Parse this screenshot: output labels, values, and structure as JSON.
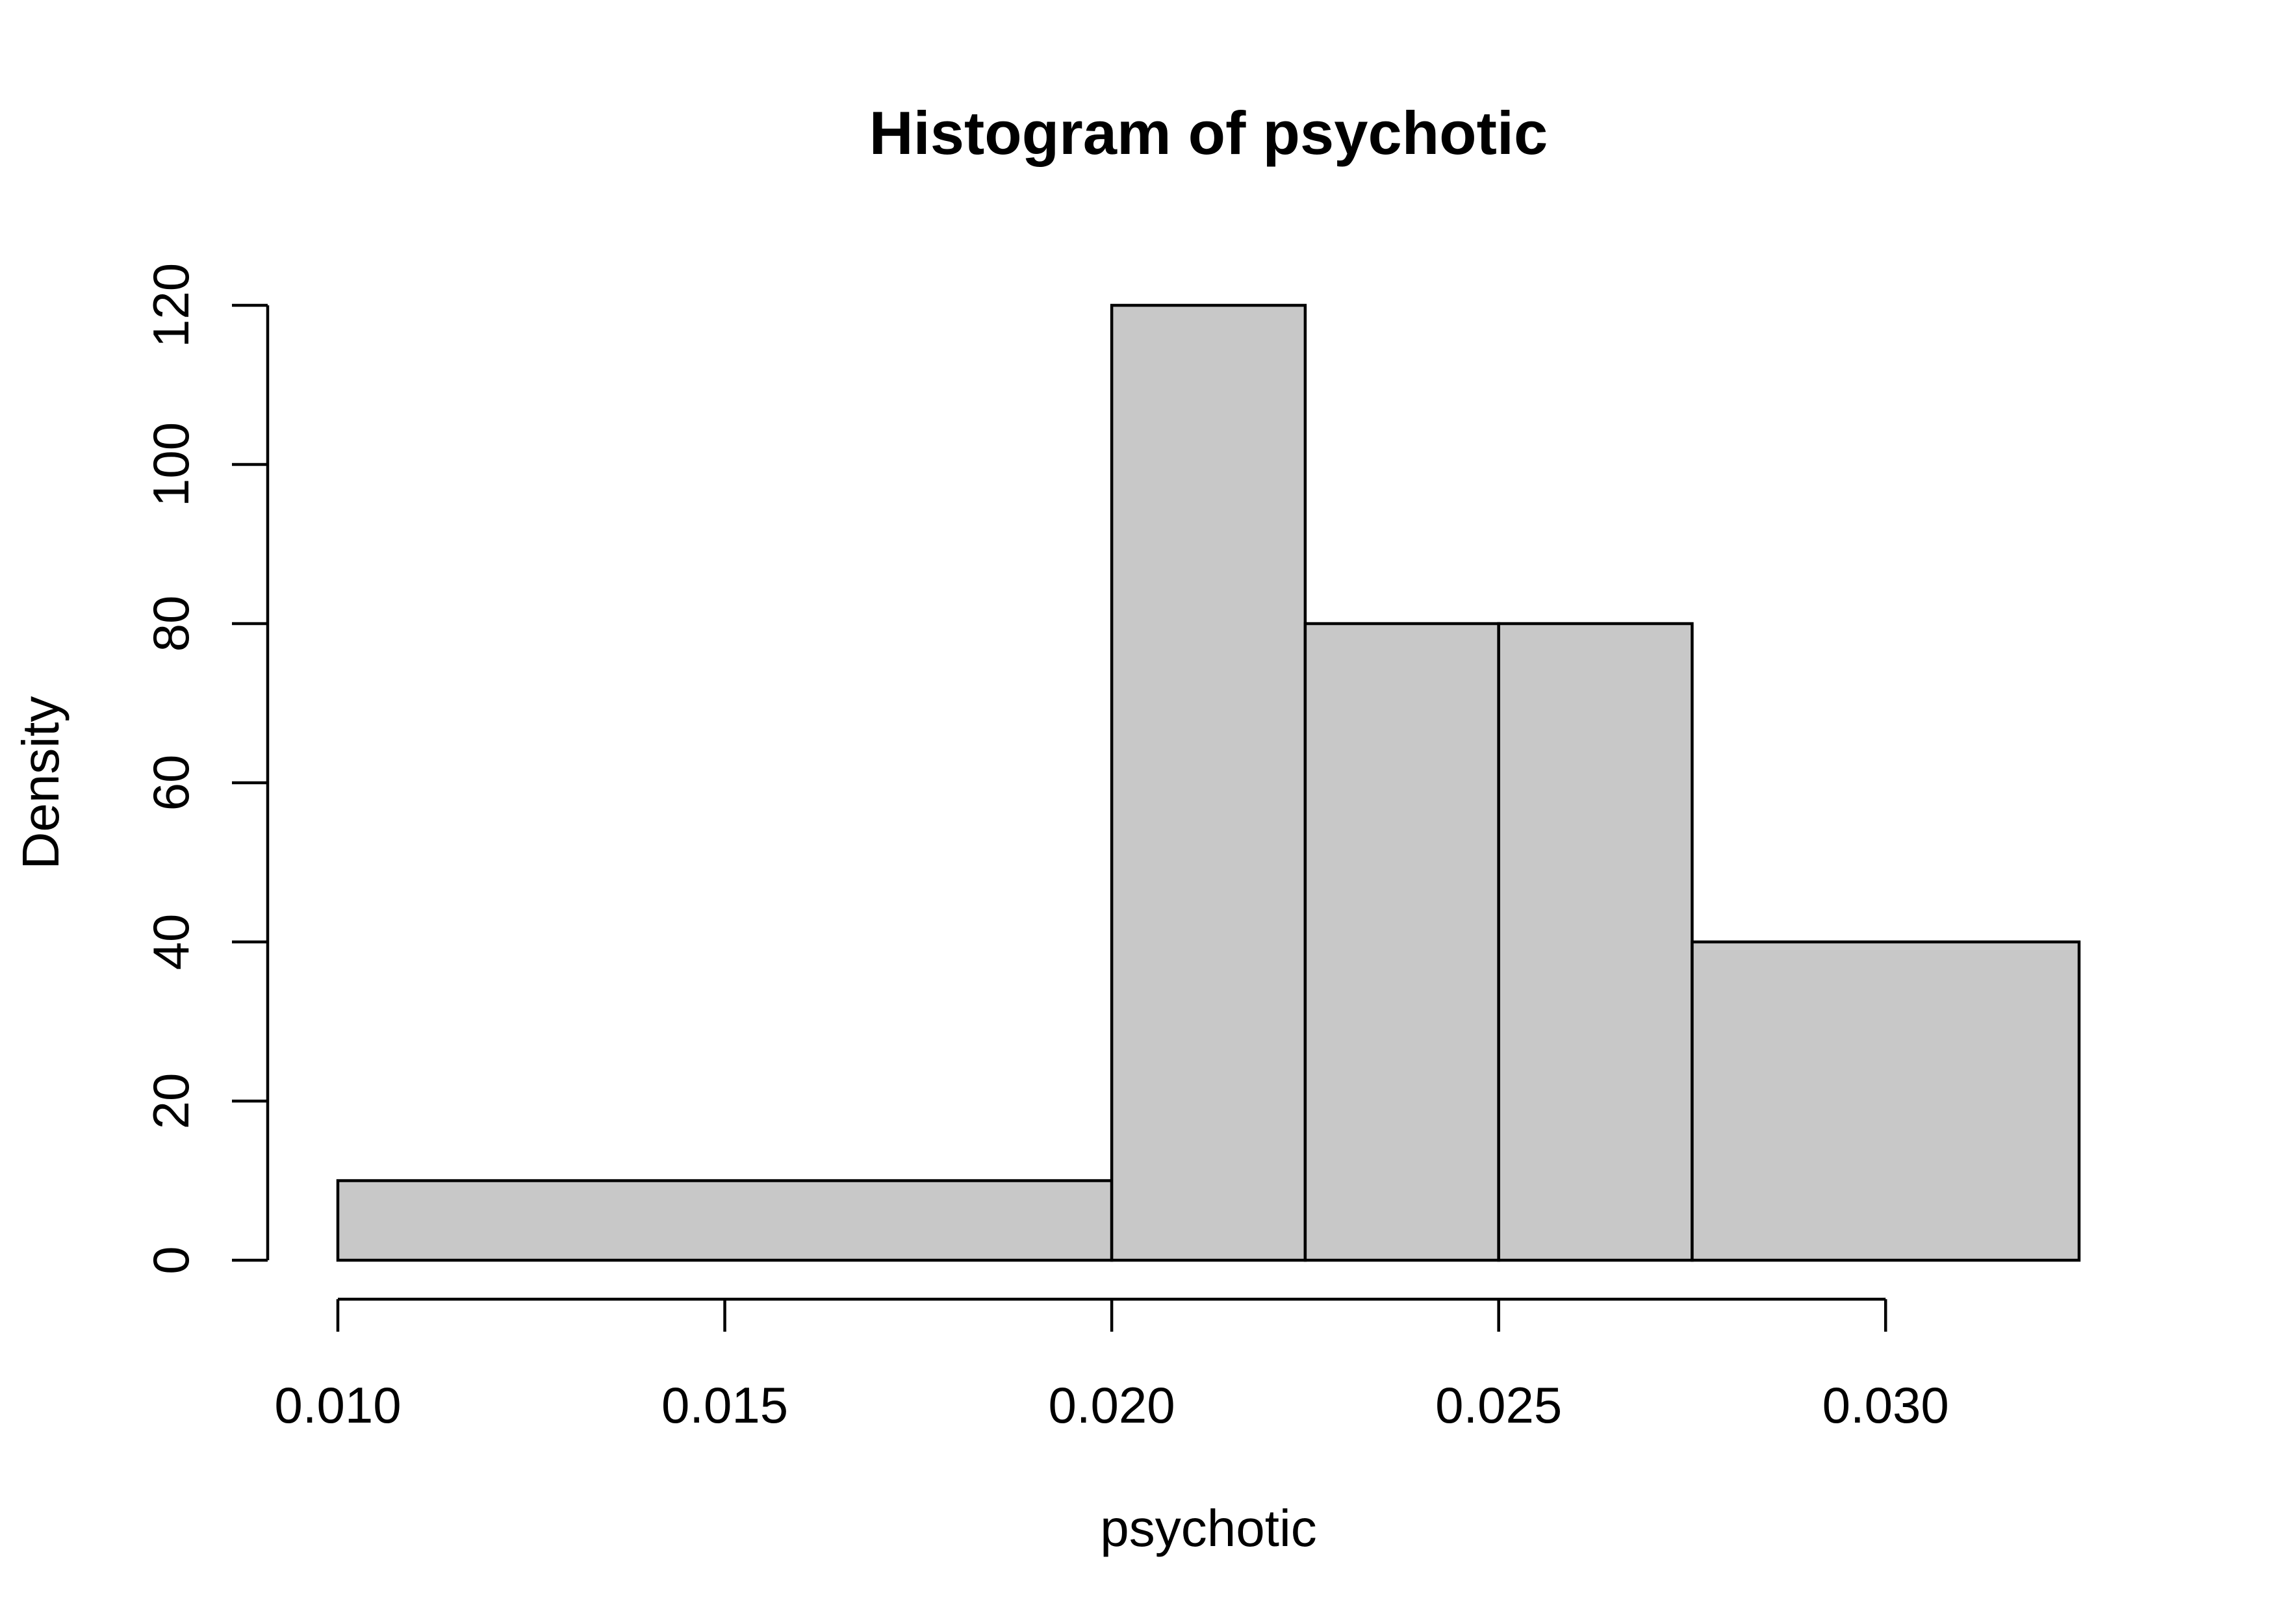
{
  "chart_data": {
    "type": "bar",
    "title": "Histogram of psychotic",
    "xlabel": "psychotic",
    "ylabel": "Density",
    "bins": [
      {
        "x0": 0.01,
        "x1": 0.02,
        "density": 10
      },
      {
        "x0": 0.02,
        "x1": 0.0225,
        "density": 120
      },
      {
        "x0": 0.0225,
        "x1": 0.025,
        "density": 80
      },
      {
        "x0": 0.025,
        "x1": 0.0275,
        "density": 80
      },
      {
        "x0": 0.0275,
        "x1": 0.0325,
        "density": 40
      }
    ],
    "xticks": [
      0.01,
      0.015,
      0.02,
      0.025,
      0.03
    ],
    "xtick_labels": [
      "0.010",
      "0.015",
      "0.020",
      "0.025",
      "0.030"
    ],
    "yticks": [
      0,
      20,
      40,
      60,
      80,
      100,
      120
    ],
    "ytick_labels": [
      "0",
      "20",
      "40",
      "60",
      "80",
      "100",
      "120"
    ],
    "xlim": [
      0.01,
      0.0325
    ],
    "ylim": [
      0,
      120
    ],
    "grid": false,
    "colors": {
      "bar_fill": "#c8c8c8",
      "bar_stroke": "#000000"
    }
  }
}
